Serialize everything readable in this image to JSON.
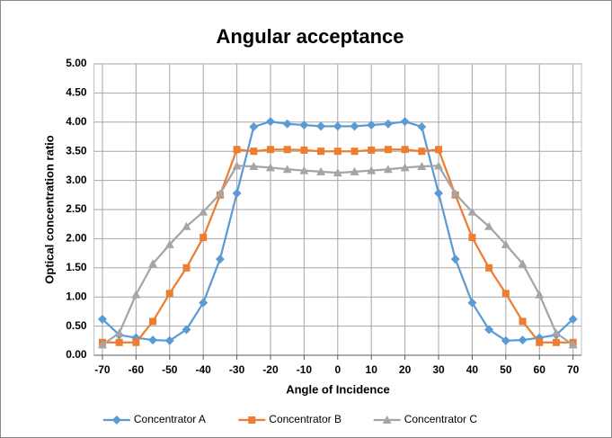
{
  "chart_data": {
    "type": "line",
    "title": "Angular acceptance",
    "xlabel": "Angle of Incidence",
    "ylabel": "Optical concentration ratio",
    "x": [
      -70,
      -65,
      -60,
      -55,
      -50,
      -45,
      -40,
      -35,
      -30,
      -25,
      -20,
      -15,
      -10,
      -5,
      0,
      5,
      10,
      15,
      20,
      25,
      30,
      35,
      40,
      45,
      50,
      55,
      60,
      65,
      70
    ],
    "series": [
      {
        "name": "Concentrator A",
        "color": "#5b9bd5",
        "marker": "diamond",
        "values": [
          0.62,
          0.35,
          0.3,
          0.26,
          0.25,
          0.44,
          0.9,
          1.65,
          2.78,
          3.92,
          4.01,
          3.97,
          3.95,
          3.93,
          3.93,
          3.93,
          3.95,
          3.97,
          4.01,
          3.92,
          2.78,
          1.65,
          0.9,
          0.44,
          0.25,
          0.26,
          0.3,
          0.35,
          0.62
        ]
      },
      {
        "name": "Concentrator B",
        "color": "#ed7d31",
        "marker": "square",
        "values": [
          0.22,
          0.22,
          0.22,
          0.58,
          1.06,
          1.5,
          2.02,
          2.75,
          3.53,
          3.5,
          3.53,
          3.53,
          3.52,
          3.5,
          3.5,
          3.5,
          3.52,
          3.53,
          3.53,
          3.5,
          3.53,
          2.75,
          2.02,
          1.5,
          1.06,
          0.58,
          0.22,
          0.22,
          0.22
        ]
      },
      {
        "name": "Concentrator C",
        "color": "#a5a5a5",
        "marker": "triangle",
        "values": [
          0.18,
          0.38,
          1.04,
          1.57,
          1.9,
          2.21,
          2.46,
          2.77,
          3.25,
          3.24,
          3.22,
          3.19,
          3.17,
          3.15,
          3.13,
          3.15,
          3.17,
          3.19,
          3.22,
          3.24,
          3.25,
          2.77,
          2.46,
          2.21,
          1.9,
          1.57,
          1.04,
          0.38,
          0.18
        ]
      }
    ],
    "xlim": [
      -72.5,
      72.5
    ],
    "xticks": [
      -70,
      -60,
      -50,
      -40,
      -30,
      -20,
      -10,
      0,
      10,
      20,
      30,
      40,
      50,
      60,
      70
    ],
    "ylim": [
      0,
      5
    ],
    "yticks": [
      {
        "value": 0,
        "label": "0.00"
      },
      {
        "value": 0.5,
        "label": "0.50"
      },
      {
        "value": 1,
        "label": "1.00"
      },
      {
        "value": 1.5,
        "label": "1.50"
      },
      {
        "value": 2,
        "label": "2.00"
      },
      {
        "value": 2.5,
        "label": "2.50"
      },
      {
        "value": 3,
        "label": "3.00"
      },
      {
        "value": 3.5,
        "label": "3.50"
      },
      {
        "value": 4,
        "label": "4.00"
      },
      {
        "value": 4.5,
        "label": "4.50"
      },
      {
        "value": 5,
        "label": "5.00"
      }
    ],
    "grid": true,
    "legend": "bottom"
  }
}
